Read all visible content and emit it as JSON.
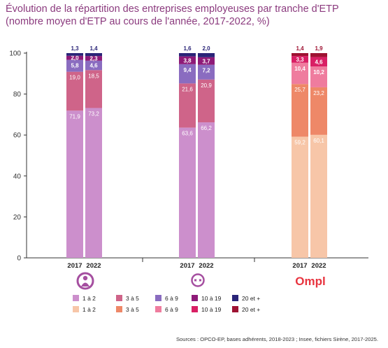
{
  "title_line1": "Évolution de la répartition des entreprises employeuses par tranche d'ETP",
  "title_line2": "(nombre moyen d'ETP au cours de l'année, 2017-2022, %)",
  "source": "Sources : OPCO-EP, bases adhérents, 2018-2023 ; Insee, fichiers Sirène, 2017-2025.",
  "colors": {
    "title": "#8b3a7e",
    "group_a": [
      "#cc8fcc",
      "#cf6489",
      "#8a6cc0",
      "#8e1a78",
      "#2a2478"
    ],
    "group_b": [
      "#f7c6a8",
      "#ee8868",
      "#ef7c9e",
      "#d91f64",
      "#9e1232"
    ]
  },
  "logos": [
    "logo-group-1",
    "logo-group-2",
    "Ompl"
  ],
  "chart_data": {
    "type": "bar",
    "stacked": true,
    "ylim": [
      0,
      100
    ],
    "yticks": [
      0,
      20,
      40,
      60,
      80,
      100
    ],
    "groups": [
      {
        "bars": [
          {
            "x": "2017",
            "values": [
              71.9,
              19.0,
              5.8,
              2.0,
              1.3
            ],
            "labels": [
              "71,9",
              "19,0",
              "5,8",
              "2,0",
              "1,3"
            ]
          },
          {
            "x": "2022",
            "values": [
              73.2,
              18.5,
              4.6,
              2.3,
              1.4
            ],
            "labels": [
              "73,2",
              "18,5",
              "4,6",
              "2,3",
              "1,4"
            ]
          }
        ]
      },
      {
        "bars": [
          {
            "x": "2017",
            "values": [
              63.6,
              21.6,
              9.4,
              3.8,
              1.6
            ],
            "labels": [
              "63,6",
              "21,6",
              "9,4",
              "3,8",
              "1,6"
            ]
          },
          {
            "x": "2022",
            "values": [
              66.2,
              20.9,
              7.2,
              3.7,
              2.0
            ],
            "labels": [
              "66,2",
              "20,9",
              "7,2",
              "3,7",
              "2,0"
            ]
          }
        ]
      },
      {
        "bars": [
          {
            "x": "2017",
            "values": [
              59.2,
              25.7,
              10.4,
              3.3,
              1.4
            ],
            "labels": [
              "59,2",
              "25,7",
              "10,4",
              "3,3",
              "1,4"
            ]
          },
          {
            "x": "2022",
            "values": [
              60.1,
              23.2,
              10.2,
              4.6,
              1.9
            ],
            "labels": [
              "60,1",
              "23,2",
              "10,2",
              "4,6",
              "1,9"
            ]
          }
        ]
      }
    ],
    "legend": {
      "rows": [
        [
          "1 à 2",
          "3 à 5",
          "6 à 9",
          "10 à 19",
          "20 et +"
        ],
        [
          "1 à 2",
          "3 à 5",
          "6 à 9",
          "10 à 19",
          "20 et +"
        ]
      ]
    },
    "grid": false
  }
}
